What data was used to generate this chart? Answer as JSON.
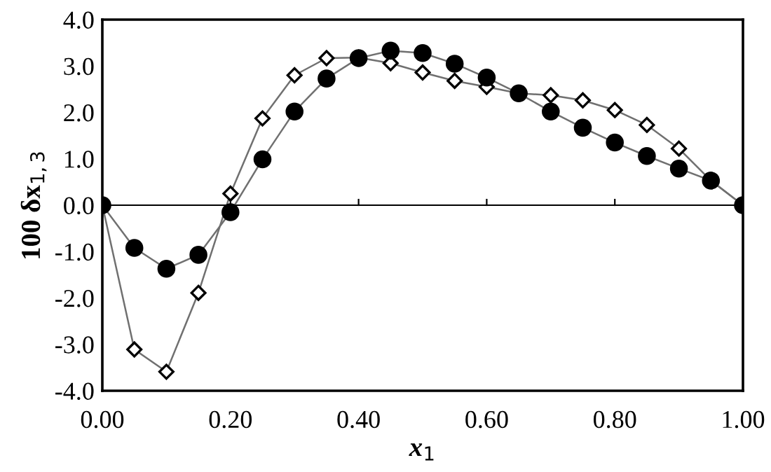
{
  "chart_data": {
    "type": "line",
    "xlabel": "x$_{1}$",
    "ylabel": "100 δx$_{1,3}$",
    "x": [
      0,
      0.05,
      0.1,
      0.15,
      0.2,
      0.25,
      0.3,
      0.35,
      0.4,
      0.45,
      0.5,
      0.55,
      0.6,
      0.65,
      0.7,
      0.75,
      0.8,
      0.85,
      0.9,
      0.95,
      1.0
    ],
    "series": [
      {
        "color": "#000000",
        "marker": "circle",
        "values": [
          0,
          -0.92,
          -1.37,
          -1.07,
          -0.15,
          0.99,
          2.02,
          2.73,
          3.17,
          3.33,
          3.28,
          3.05,
          2.75,
          2.41,
          2.02,
          1.67,
          1.35,
          1.06,
          0.79,
          0.53,
          0
        ]
      },
      {
        "color": "#000000",
        "marker": "diamond",
        "values": [
          0,
          -3.11,
          -3.59,
          -1.89,
          0.25,
          1.87,
          2.8,
          3.17,
          3.18,
          3.06,
          2.86,
          2.68,
          2.55,
          2.41,
          2.37,
          2.26,
          2.05,
          1.73,
          1.22,
          0.53,
          0
        ]
      }
    ],
    "xlim": [
      0,
      1.0
    ],
    "ylim": [
      -4.0,
      4.0
    ],
    "xticks": [
      {
        "value": 0,
        "label": "0.00"
      },
      {
        "value": 0.2,
        "label": "0.20"
      },
      {
        "value": 0.4,
        "label": "0.40"
      },
      {
        "value": 0.6,
        "label": "0.60"
      },
      {
        "value": 0.8,
        "label": "0.80"
      },
      {
        "value": 1.0,
        "label": "1.00"
      }
    ],
    "yticks": [
      {
        "value": -4,
        "label": "-4.0"
      },
      {
        "value": -3,
        "label": "-3.0"
      },
      {
        "value": -2,
        "label": "-2.0"
      },
      {
        "value": -1,
        "label": "-1.0"
      },
      {
        "value": 0,
        "label": "0.0"
      },
      {
        "value": 1,
        "label": "1.0"
      },
      {
        "value": 2,
        "label": "2.0"
      },
      {
        "value": 3,
        "label": "3.0"
      },
      {
        "value": 4,
        "label": "4.0"
      }
    ],
    "ref_lines": [
      {
        "axis": "y",
        "value": 0,
        "color": "#000000"
      }
    ]
  }
}
